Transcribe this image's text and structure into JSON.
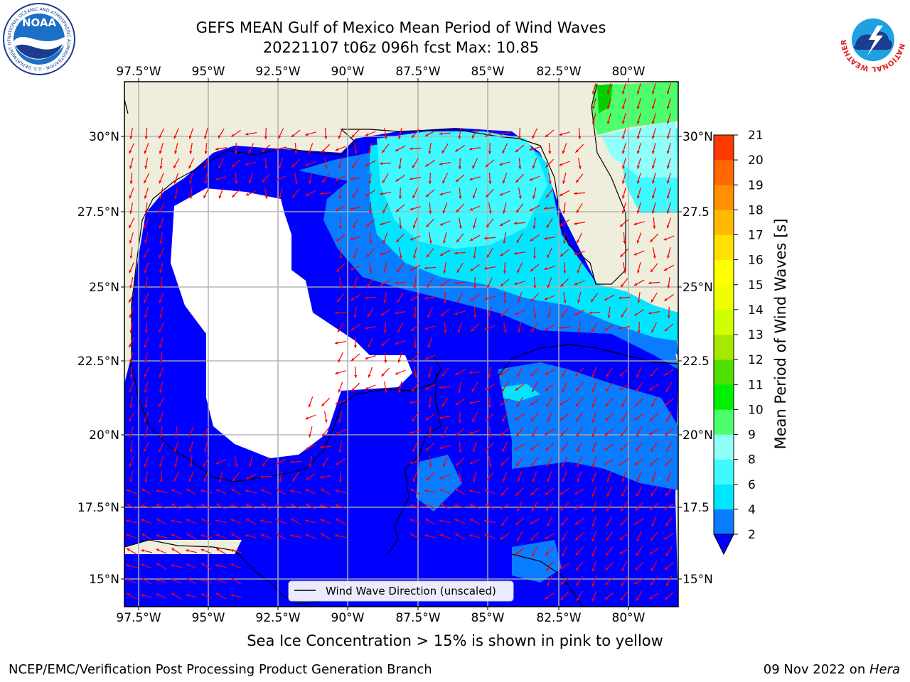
{
  "title": {
    "line1": "GEFS MEAN Gulf of Mexico Mean Period of Wind Waves",
    "line2": "20221107 t06z 096h fcst   Max: 10.85"
  },
  "map": {
    "lon_ticks": [
      "97.5°W",
      "95°W",
      "92.5°W",
      "90°W",
      "87.5°W",
      "85°W",
      "82.5°W",
      "80°W"
    ],
    "lat_ticks_left": [
      "30°N",
      "27.5°N",
      "25°N",
      "22.5°N",
      "20°N",
      "17.5°N",
      "15°N"
    ],
    "lat_ticks_right": [
      "30°N",
      "27.5",
      "25°N",
      "22.5",
      "20°N",
      "17.5",
      "15°N"
    ],
    "legend_label": "Wind Wave Direction (unscaled)",
    "land_color": "#efeddb",
    "arrow_color": "#ff0000"
  },
  "colorbar": {
    "label": "Mean Period of Wind Waves [s]",
    "ticks": [
      "2",
      "4",
      "6",
      "8",
      "9",
      "10",
      "11",
      "12",
      "13",
      "14",
      "15",
      "16",
      "17",
      "18",
      "19",
      "20",
      "21"
    ],
    "colors": [
      "#0a7cff",
      "#00e6ff",
      "#3ff9ff",
      "#8ffffa",
      "#4dff6c",
      "#00f000",
      "#50df00",
      "#a6e800",
      "#cfff00",
      "#efff00",
      "#ffff00",
      "#ffe000",
      "#ffba00",
      "#ff9000",
      "#ff6800",
      "#ff3a00"
    ],
    "extend_color": "#0000ff"
  },
  "footer_note": "Sea Ice Concentration > 15% is shown in pink to yellow",
  "credits": {
    "left": "NCEP/EMC/Verification Post Processing Product Generation Branch",
    "right_date": "09 Nov 2022 on ",
    "right_host": "Hera"
  },
  "logos": {
    "noaa": "NOAA",
    "noaa_ring": "NATIONAL OCEANIC AND ATMOSPHERIC ADMINISTRATION · U.S. DEPARTMENT OF COMMERCE",
    "nws_ring": "NATIONAL WEATHER SERVICE"
  }
}
